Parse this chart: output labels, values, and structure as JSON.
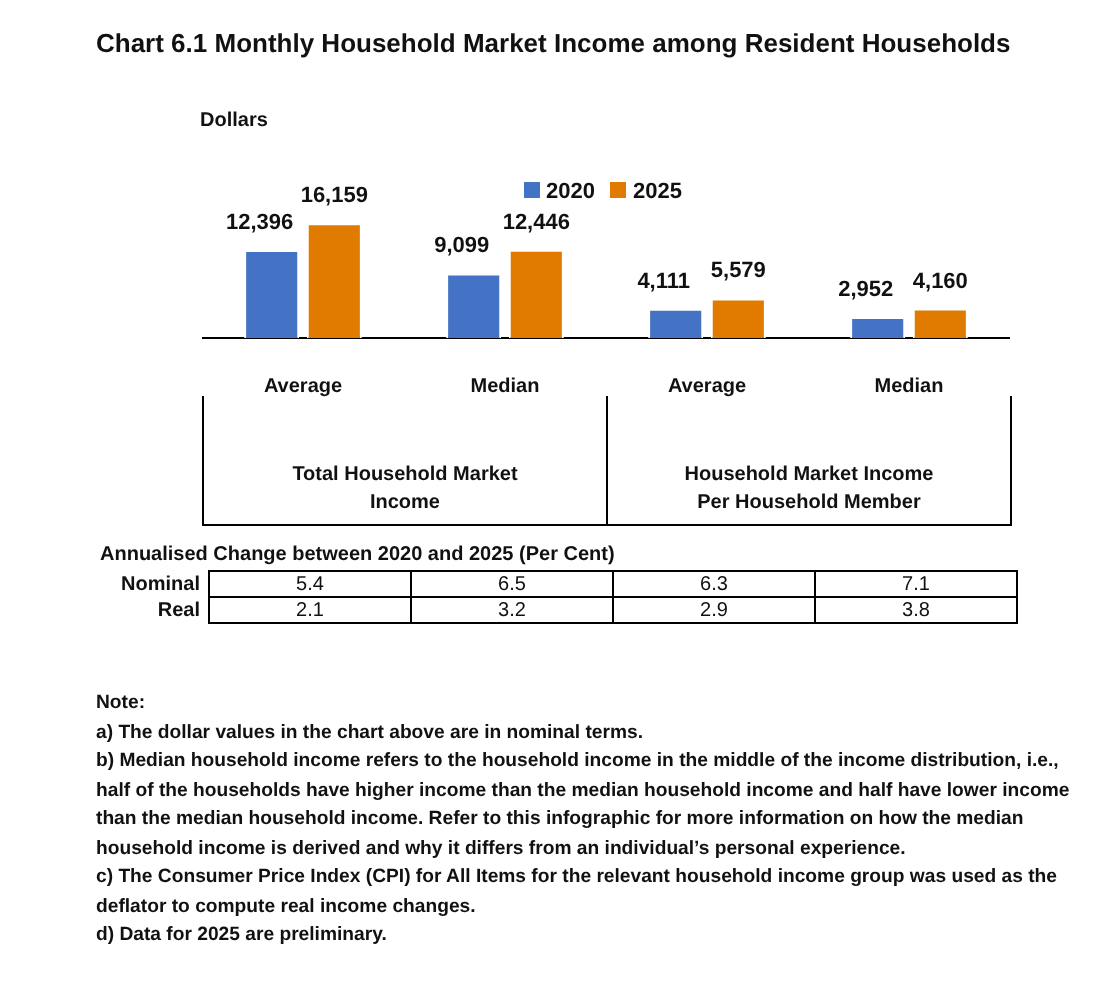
{
  "chart_data": [
    {
      "type": "bar",
      "title": "Chart 6.1  Monthly Household Market Income among Resident Households",
      "ylabel": "Dollars",
      "categories": [
        "Average",
        "Median",
        "Average",
        "Median"
      ],
      "series": [
        {
          "name": "2020",
          "color": "#4472c4",
          "values": [
            12396,
            9099,
            4111,
            2952
          ],
          "value_labels": [
            "12,396",
            "9,099",
            "4,111",
            "2,952"
          ]
        },
        {
          "name": "2025",
          "color": "#e07b00",
          "values": [
            16159,
            12446,
            5579,
            4160
          ],
          "value_labels": [
            "16,159",
            "12,446",
            "5,579",
            "4,160"
          ]
        }
      ],
      "annotations": [
        "Total Household Market Income",
        "Household Market Income Per Household Member"
      ],
      "legend": "top",
      "tick_labels": "x",
      "grid": false
    },
    {
      "type": "heatmap",
      "title": "Annualised Change between 2020 and 2025 (Per Cent)",
      "categories": [
        null,
        null,
        null,
        null
      ],
      "y_categories": [
        "Nominal",
        "Real"
      ],
      "cells": [
        [
          5.4,
          6.5,
          6.3,
          7.1
        ],
        [
          2.1,
          3.2,
          2.9,
          3.8
        ]
      ],
      "data_labels": true,
      "annotations": [
        "Note:",
        "a) The dollar values in the chart above are in nominal terms.",
        "b) Median household income refers to the household income in the middle of the income distribution, i.e., half of the households have higher income than the median household income and half have lower income than the median household income. Refer to this infographic for more information on how the median household income is derived and why it differs from an individual’s personal experience.",
        "c) The Consumer Price Index (CPI) for All Items for the relevant household income group was used as the deflator to compute real income changes.",
        "d) Data for 2025 are preliminary."
      ]
    }
  ]
}
